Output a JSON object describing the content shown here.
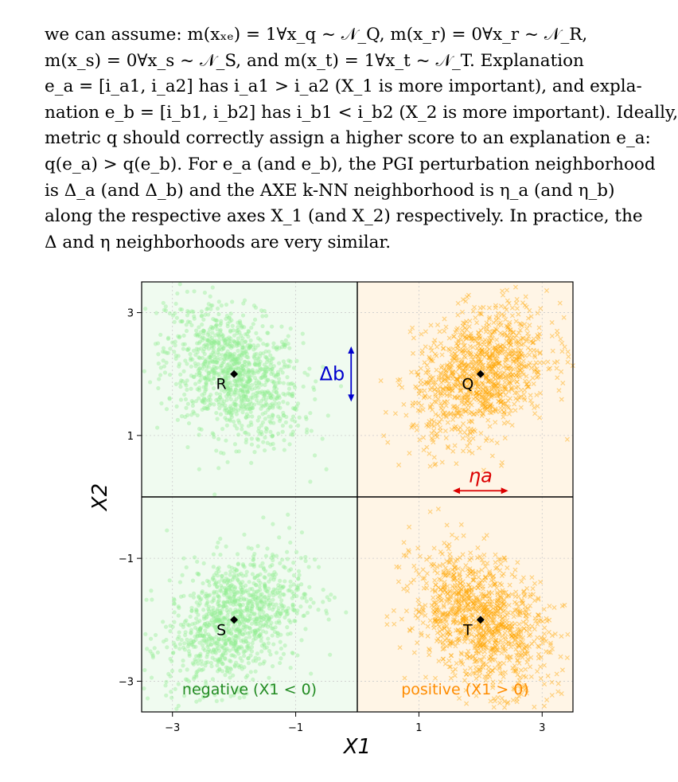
{
  "paper": {
    "lines": [
      "we can assume: m(xₓₑ) = 1∀x_q ~ 𝒩_Q, m(x_r) = 0∀x_r ~ 𝒩_R,",
      "m(x_s) = 0∀x_s ~ 𝒩_S, and m(x_t) = 1∀x_t ~ 𝒩_T. Explanation",
      "e_a = [i_a1, i_a2] has i_a1 > i_a2 (X_1 is more important), and expla-",
      "nation e_b = [i_b1, i_b2] has i_b1 < i_b2 (X_2 is more important). Ideally,",
      "metric q should correctly assign a higher score to an explanation e_a:",
      "q(e_a) > q(e_b). For e_a (and e_b), the PGI perturbation neighborhood",
      "is Δ_a (and Δ_b) and the AXE k-NN neighborhood is η_a (and η_b)",
      "along the respective axes X_1 (and X_2) respectively. In practice, the",
      "Δ and η neighborhoods are very similar."
    ]
  },
  "colors": {
    "negative_points": "#90ee90",
    "negative_bg": "#f0fbf0",
    "positive_points": "#ffa500",
    "positive_bg": "#fff5e6",
    "negative_text": "#228b22",
    "positive_text": "#ff8c00",
    "delta_arrow": "#0000cd",
    "eta_arrow": "#dc0000"
  },
  "chart_data": {
    "type": "scatter",
    "xlabel": "X1",
    "ylabel": "X2",
    "xlim": [
      -3.5,
      3.5
    ],
    "ylim": [
      -3.5,
      3.5
    ],
    "xticks": [
      -3,
      -1,
      1,
      3
    ],
    "yticks": [
      -3,
      -1,
      1,
      3
    ],
    "xtick_labels": [
      "−3",
      "−1",
      "1",
      "3"
    ],
    "ytick_labels": [
      "−3",
      "−1",
      "1",
      "3"
    ],
    "grid": true,
    "clusters": [
      {
        "label": "R",
        "center": [
          -2,
          2
        ],
        "class": "negative"
      },
      {
        "label": "S",
        "center": [
          -2,
          -2
        ],
        "class": "negative"
      },
      {
        "label": "Q",
        "center": [
          2,
          2
        ],
        "class": "positive"
      },
      {
        "label": "T",
        "center": [
          2,
          -2
        ],
        "class": "positive"
      }
    ],
    "regions": {
      "negative_label": "negative (X1 < 0)",
      "positive_label": "positive (X1 > 0)"
    },
    "annotations": {
      "delta_b": {
        "label": "Δb",
        "x": -0.1,
        "y_range": [
          1.55,
          2.45
        ],
        "orientation": "vertical"
      },
      "eta_a": {
        "label": "ηa",
        "y": 0.1,
        "x_range": [
          1.55,
          2.45
        ],
        "orientation": "horizontal"
      }
    }
  }
}
